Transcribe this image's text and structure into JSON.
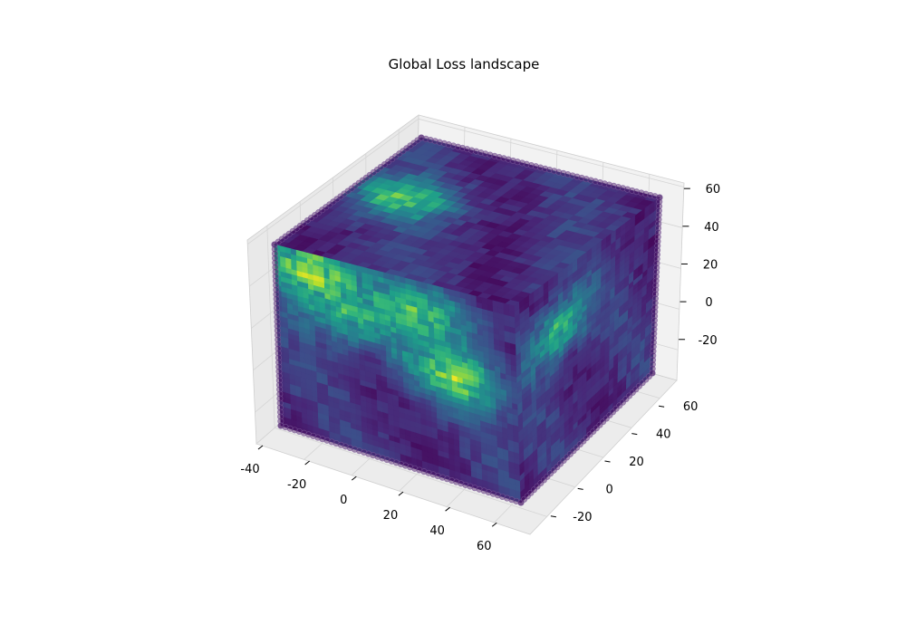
{
  "chart_data": {
    "type": "scatter",
    "title": "Global Loss landscape",
    "xlabel": "",
    "ylabel": "",
    "zlabel": "",
    "xlim": [
      -40,
      75
    ],
    "ylim": [
      -32,
      72
    ],
    "zlim": [
      -35,
      62
    ],
    "x_ticks": [
      -40,
      -20,
      0,
      20,
      40,
      60
    ],
    "y_ticks": [
      -20,
      0,
      20,
      40,
      60
    ],
    "z_ticks": [
      -20,
      0,
      20,
      40,
      60
    ],
    "colormap": "viridis",
    "colors": {
      "low": "#440154",
      "mid_low": "#3b528b",
      "mid": "#21918c",
      "mid_high": "#35b779",
      "high": "#fde725",
      "pane_back": "#f2f2f2",
      "pane_side": "#e6e6e6",
      "pane_floor": "#ebebeb",
      "grid": "#d9d9d9"
    },
    "hotspots": [
      {
        "face": "top",
        "u": 0.2,
        "v": 0.55,
        "value": 0.55
      },
      {
        "face": "front",
        "u": 0.14,
        "v": 0.92,
        "value": 0.7
      },
      {
        "face": "front",
        "u": 0.3,
        "v": 0.7,
        "value": 0.45
      },
      {
        "face": "front",
        "u": 0.75,
        "v": 0.55,
        "value": 0.6
      },
      {
        "face": "front",
        "u": 0.62,
        "v": 0.85,
        "value": 0.5
      },
      {
        "face": "right",
        "u": 0.3,
        "v": 0.7,
        "value": 0.55
      }
    ]
  }
}
